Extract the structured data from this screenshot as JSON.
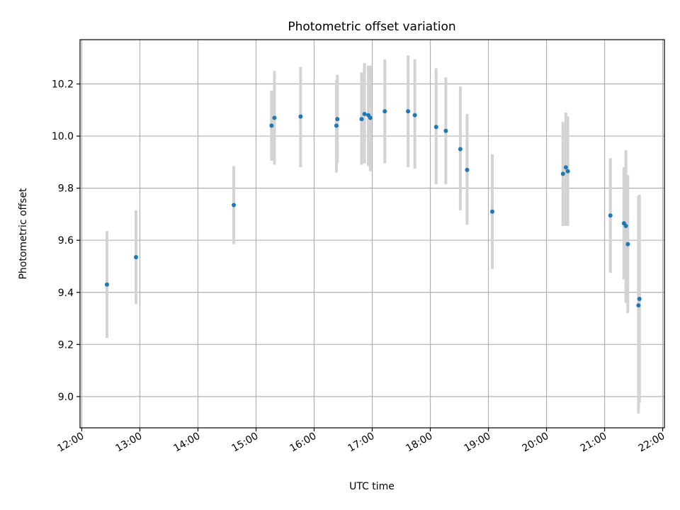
{
  "chart_data": {
    "type": "scatter",
    "title": "Photometric offset variation",
    "xlabel": "UTC time",
    "ylabel": "Photometric offset",
    "xlim_hours": [
      11.97,
      22.03
    ],
    "ylim": [
      8.88,
      10.37
    ],
    "grid": true,
    "x_ticks": [
      {
        "hour": 12,
        "label": "12:00"
      },
      {
        "hour": 13,
        "label": "13:00"
      },
      {
        "hour": 14,
        "label": "14:00"
      },
      {
        "hour": 15,
        "label": "15:00"
      },
      {
        "hour": 16,
        "label": "16:00"
      },
      {
        "hour": 17,
        "label": "17:00"
      },
      {
        "hour": 18,
        "label": "18:00"
      },
      {
        "hour": 19,
        "label": "19:00"
      },
      {
        "hour": 20,
        "label": "20:00"
      },
      {
        "hour": 21,
        "label": "21:00"
      },
      {
        "hour": 22,
        "label": "22:00"
      }
    ],
    "y_ticks": [
      {
        "value": 9.0,
        "label": "9.0"
      },
      {
        "value": 9.2,
        "label": "9.2"
      },
      {
        "value": 9.4,
        "label": "9.4"
      },
      {
        "value": 9.6,
        "label": "9.6"
      },
      {
        "value": 9.8,
        "label": "9.8"
      },
      {
        "value": 10.0,
        "label": "10.0"
      },
      {
        "value": 10.2,
        "label": "10.2"
      }
    ],
    "marker_color": "#1f77b4",
    "errorbar_color": "#d3d3d3",
    "points": [
      {
        "time": "12:26",
        "y": 9.43,
        "lo": 9.225,
        "hi": 9.635
      },
      {
        "time": "12:56",
        "y": 9.535,
        "lo": 9.355,
        "hi": 9.715
      },
      {
        "time": "14:37",
        "y": 9.735,
        "lo": 9.585,
        "hi": 9.885
      },
      {
        "time": "15:16",
        "y": 10.04,
        "lo": 9.905,
        "hi": 10.175
      },
      {
        "time": "15:19",
        "y": 10.07,
        "lo": 9.89,
        "hi": 10.25
      },
      {
        "time": "15:46",
        "y": 10.075,
        "lo": 9.88,
        "hi": 10.265
      },
      {
        "time": "16:23",
        "y": 10.04,
        "lo": 9.86,
        "hi": 10.215
      },
      {
        "time": "16:24",
        "y": 10.065,
        "lo": 9.895,
        "hi": 10.235
      },
      {
        "time": "16:49",
        "y": 10.065,
        "lo": 9.89,
        "hi": 10.245
      },
      {
        "time": "16:52",
        "y": 10.085,
        "lo": 9.895,
        "hi": 10.28
      },
      {
        "time": "16:56",
        "y": 10.08,
        "lo": 9.885,
        "hi": 10.27
      },
      {
        "time": "16:58",
        "y": 10.07,
        "lo": 9.865,
        "hi": 10.27
      },
      {
        "time": "17:13",
        "y": 10.095,
        "lo": 9.895,
        "hi": 10.295
      },
      {
        "time": "17:37",
        "y": 10.095,
        "lo": 9.88,
        "hi": 10.31
      },
      {
        "time": "17:44",
        "y": 10.08,
        "lo": 9.875,
        "hi": 10.295
      },
      {
        "time": "18:06",
        "y": 10.035,
        "lo": 9.815,
        "hi": 10.26
      },
      {
        "time": "18:16",
        "y": 10.02,
        "lo": 9.815,
        "hi": 10.225
      },
      {
        "time": "18:31",
        "y": 9.95,
        "lo": 9.715,
        "hi": 10.19
      },
      {
        "time": "18:38",
        "y": 9.87,
        "lo": 9.66,
        "hi": 10.085
      },
      {
        "time": "19:04",
        "y": 9.71,
        "lo": 9.49,
        "hi": 9.93
      },
      {
        "time": "20:17",
        "y": 9.855,
        "lo": 9.655,
        "hi": 10.055
      },
      {
        "time": "20:20",
        "y": 9.88,
        "lo": 9.655,
        "hi": 10.09
      },
      {
        "time": "20:22",
        "y": 9.865,
        "lo": 9.655,
        "hi": 10.075
      },
      {
        "time": "21:06",
        "y": 9.695,
        "lo": 9.475,
        "hi": 9.915
      },
      {
        "time": "21:20",
        "y": 9.665,
        "lo": 9.45,
        "hi": 9.88
      },
      {
        "time": "21:22",
        "y": 9.655,
        "lo": 9.36,
        "hi": 9.945
      },
      {
        "time": "21:24",
        "y": 9.585,
        "lo": 9.32,
        "hi": 9.85
      },
      {
        "time": "21:35",
        "y": 9.35,
        "lo": 8.935,
        "hi": 9.77
      },
      {
        "time": "21:36",
        "y": 9.375,
        "lo": 8.975,
        "hi": 9.775
      }
    ]
  }
}
